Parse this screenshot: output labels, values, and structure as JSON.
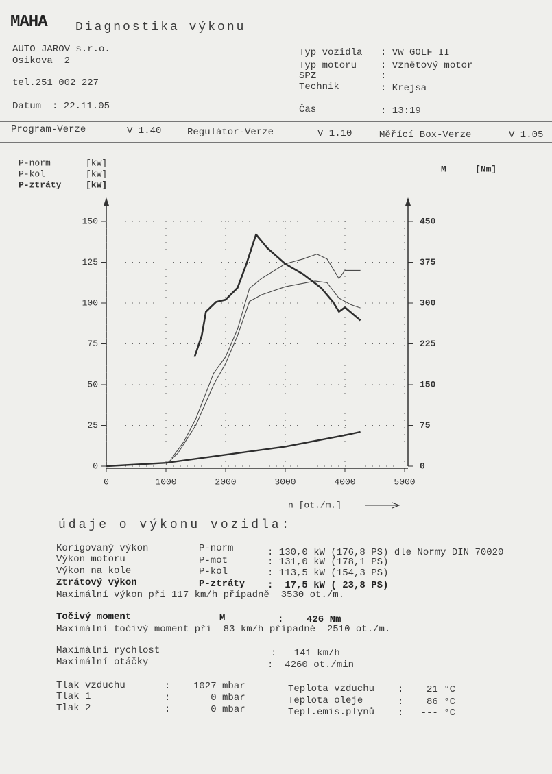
{
  "header": {
    "logo": "MAHA",
    "title": "Diagnostika výkonu",
    "company": [
      "AUTO JAROV s.r.o.",
      "Osikova  2",
      "tel.251 002 227"
    ],
    "date_label": "Datum",
    "date": ": 22.11.05",
    "fields": [
      {
        "label": "Typ vozidla",
        "value": ": VW GOLF II"
      },
      {
        "label": "Typ motoru",
        "value": ": Vznětový motor"
      },
      {
        "label": "SPZ",
        "value": ":"
      },
      {
        "label": "Technik",
        "value": ": Krejsa"
      },
      {
        "label": "Čas",
        "value": ": 13:19"
      }
    ],
    "versions": [
      {
        "label": "Program-Verze",
        "value": "V 1.40"
      },
      {
        "label": "Regulátor-Verze",
        "value": "V 1.10"
      },
      {
        "label": "Měřící Box-Verze",
        "value": "V 1.05"
      }
    ]
  },
  "chart_data": {
    "type": "line",
    "x_label": "n [ot./m.]",
    "xlim": [
      0,
      5000
    ],
    "xticks": [
      0,
      1000,
      2000,
      3000,
      4000,
      5000
    ],
    "ylim": [
      0,
      150
    ],
    "yticks": [
      0,
      25,
      50,
      75,
      100,
      125,
      150
    ],
    "y2lim": [
      0,
      450
    ],
    "y2ticks": [
      0,
      75,
      150,
      225,
      300,
      375,
      450
    ],
    "grid": true,
    "series": [
      {
        "name": "P-norm",
        "unit": "[kW]",
        "color": "#4a4a4a",
        "width": 1.1,
        "x": [
          1100,
          1300,
          1500,
          1800,
          2000,
          2200,
          2400,
          2600,
          3000,
          3300,
          3530,
          3700,
          3900,
          4000,
          4260
        ],
        "values": [
          5,
          15,
          29,
          57,
          67,
          84,
          109,
          115,
          124,
          127,
          130,
          127,
          115,
          120,
          120
        ]
      },
      {
        "name": "P-kol",
        "unit": "[kW]",
        "color": "#4a4a4a",
        "width": 1.1,
        "x": [
          1000,
          1200,
          1500,
          1800,
          2000,
          2200,
          2400,
          2600,
          3000,
          3500,
          3700,
          3900,
          4100,
          4260
        ],
        "values": [
          1,
          8,
          25,
          50,
          63,
          80,
          101,
          105,
          110,
          113.5,
          112.5,
          103,
          99,
          97
        ]
      },
      {
        "name": "P-ztráty",
        "unit": "[kW]",
        "color": "#2e2e2e",
        "width": 2.4,
        "x": [
          0,
          1000,
          2000,
          3000,
          4000,
          4260
        ],
        "values": [
          0,
          2,
          7,
          12,
          19,
          21
        ]
      },
      {
        "name": "M",
        "unit": "[Nm]",
        "color": "#2e2e2e",
        "width": 2.6,
        "axis": "y2",
        "x": [
          1480,
          1600,
          1670,
          1840,
          2000,
          2200,
          2350,
          2510,
          2700,
          3000,
          3300,
          3600,
          3800,
          3900,
          4000,
          4260
        ],
        "values": [
          201,
          240,
          284,
          302,
          306,
          328,
          372,
          426,
          401,
          372,
          353,
          328,
          302,
          284,
          292,
          268
        ]
      }
    ]
  },
  "results": {
    "title": "údaje o výkonu vozidla:",
    "power": [
      {
        "label": "Korigovaný výkon",
        "symbol": "P-norm",
        "value": ": 130,0 kW (176,8 PS) dle Normy DIN 70020"
      },
      {
        "label": "Výkon motoru",
        "symbol": "P-mot",
        "value": ": 131,0 kW (178,1 PS)"
      },
      {
        "label": "Výkon na kole",
        "symbol": "P-kol",
        "value": ": 113,5 kW (154,3 PS)"
      },
      {
        "label": "Ztrátový výkon",
        "symbol": "P-ztráty",
        "value": ":  17,5 kW ( 23,8 PS)"
      }
    ],
    "power_note": "Maximální výkon při 117 km/h případně  3530 ot./m.",
    "torque": {
      "label": "Točivý moment",
      "symbol": "M",
      "value": ":    426 Nm"
    },
    "torque_note": "Maximální točivý moment při  83 km/h případně  2510 ot./m.",
    "max": [
      {
        "label": "Maximální rychlost",
        "value": ":   141 km/h"
      },
      {
        "label": "Maximální otáčky",
        "value": ":  4260 ot./min"
      }
    ],
    "pressures": [
      {
        "label": "Tlak vzduchu",
        "value": ":    1027 mbar"
      },
      {
        "label": "Tlak 1",
        "value": ":       0 mbar"
      },
      {
        "label": "Tlak 2",
        "value": ":       0 mbar"
      }
    ],
    "temperatures": [
      {
        "label": "Teplota vzduchu",
        "value": ":    21 °C"
      },
      {
        "label": "Teplota oleje",
        "value": ":    86 °C"
      },
      {
        "label": "Tepl.emis.plynů",
        "value": ":   --- °C"
      }
    ]
  }
}
